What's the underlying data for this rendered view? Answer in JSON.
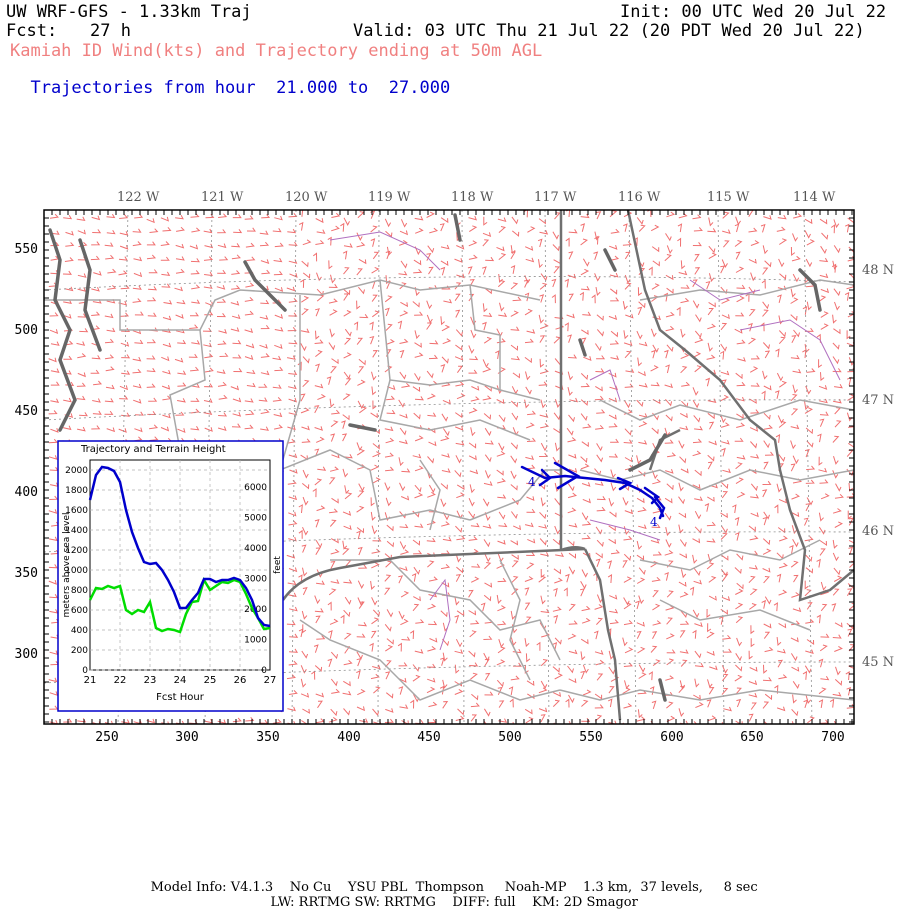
{
  "header": {
    "model": "UW WRF-GFS - 1.33km Traj",
    "init": "Init: 00 UTC Wed 20 Jul 22",
    "fcst_label": "Fcst:",
    "fcst_value": "27 h",
    "valid": "Valid: 03 UTC Thu 21 Jul 22 (20 PDT Wed 20 Jul 22)",
    "subtitle": "Kamiah ID Wind(kts) and Trajectory ending at 50m AGL",
    "traj_label": "Trajectories from hour",
    "traj_from": "21.000",
    "traj_to_word": "to",
    "traj_to": "27.000"
  },
  "colors": {
    "subtitle": "#f08080",
    "trajectory": "#0000cc",
    "terrain": "#00dd00",
    "barbs": "#f07070",
    "borders": "#a0a0a0",
    "coast": "#606060"
  },
  "map": {
    "lon_labels": [
      "122 W",
      "121 W",
      "120 W",
      "119 W",
      "118 W",
      "117 W",
      "116 W",
      "115 W",
      "114 W"
    ],
    "lat_labels": [
      "48 N",
      "47 N",
      "46 N",
      "45 N"
    ],
    "x_ticks": [
      "250",
      "300",
      "350",
      "400",
      "450",
      "500",
      "550",
      "600",
      "650",
      "700"
    ],
    "y_ticks": [
      "550",
      "500",
      "450",
      "400",
      "350",
      "300"
    ],
    "traj_markers": [
      "4",
      "4"
    ]
  },
  "inset": {
    "title": "Trajectory and Terrain Height",
    "xlabel": "Fcst Hour",
    "ylabel_left": "meters above sea level",
    "ylabel_right": "feet",
    "x_ticks": [
      "21",
      "22",
      "23",
      "24",
      "25",
      "26",
      "27"
    ],
    "y_ticks_left": [
      "0",
      "200",
      "400",
      "600",
      "800",
      "1000",
      "1200",
      "1400",
      "1600",
      "1800",
      "2000"
    ],
    "y_ticks_right": [
      "0",
      "1000",
      "2000",
      "3000",
      "4000",
      "5000",
      "6000"
    ]
  },
  "chart_data": {
    "type": "line",
    "title": "Trajectory and Terrain Height",
    "xlabel": "Fcst Hour",
    "ylabel": "meters above sea level",
    "xlim": [
      21,
      27
    ],
    "ylim": [
      0,
      2100
    ],
    "grid": true,
    "series": [
      {
        "color": "#0000cc",
        "x": [
          21.0,
          21.2,
          21.4,
          21.6,
          21.8,
          22.0,
          22.2,
          22.4,
          22.6,
          22.8,
          23.0,
          23.2,
          23.4,
          23.6,
          23.8,
          24.0,
          24.2,
          24.4,
          24.6,
          24.8,
          25.0,
          25.2,
          25.4,
          25.6,
          25.8,
          26.0,
          26.2,
          26.4,
          26.6,
          26.8,
          27.0
        ],
        "values": [
          1700,
          1950,
          2030,
          2020,
          1990,
          1880,
          1600,
          1380,
          1220,
          1080,
          1060,
          1070,
          1000,
          900,
          780,
          620,
          620,
          700,
          770,
          910,
          910,
          880,
          900,
          900,
          920,
          900,
          820,
          700,
          520,
          450,
          440
        ]
      },
      {
        "color": "#00dd00",
        "x": [
          21.0,
          21.2,
          21.4,
          21.6,
          21.8,
          22.0,
          22.2,
          22.4,
          22.6,
          22.8,
          23.0,
          23.2,
          23.4,
          23.6,
          23.8,
          24.0,
          24.2,
          24.4,
          24.6,
          24.8,
          25.0,
          25.2,
          25.4,
          25.6,
          25.8,
          26.0,
          26.2,
          26.4,
          26.6,
          26.8,
          27.0
        ],
        "values": [
          700,
          820,
          810,
          840,
          820,
          840,
          600,
          560,
          600,
          580,
          680,
          420,
          390,
          410,
          400,
          380,
          560,
          680,
          690,
          900,
          800,
          840,
          880,
          870,
          900,
          880,
          760,
          620,
          520,
          410,
          420
        ]
      }
    ]
  }
}
